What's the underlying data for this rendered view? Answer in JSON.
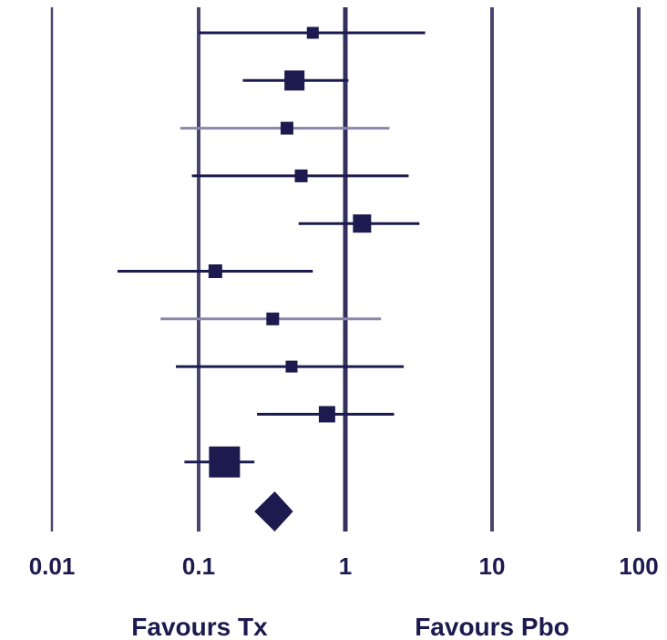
{
  "chart_data": {
    "type": "forest",
    "x_scale": "log",
    "xlim": [
      0.01,
      100
    ],
    "x_ticks": [
      0.01,
      0.1,
      1,
      10,
      100
    ],
    "x_tick_labels": [
      "0.01",
      "0.1",
      "1",
      "10",
      "100"
    ],
    "favours_left": "Favours Tx",
    "favours_right": "Favours Pbo",
    "studies": [
      {
        "estimate": 0.6,
        "ci_low": 0.1,
        "ci_high": 3.5,
        "weight": 1.0
      },
      {
        "estimate": 0.45,
        "ci_low": 0.2,
        "ci_high": 1.05,
        "weight": 2.7
      },
      {
        "estimate": 0.4,
        "ci_low": 0.075,
        "ci_high": 2.0,
        "weight": 1.2
      },
      {
        "estimate": 0.5,
        "ci_low": 0.09,
        "ci_high": 2.7,
        "weight": 1.1
      },
      {
        "estimate": 1.3,
        "ci_low": 0.48,
        "ci_high": 3.2,
        "weight": 2.4
      },
      {
        "estimate": 0.13,
        "ci_low": 0.028,
        "ci_high": 0.6,
        "weight": 1.3
      },
      {
        "estimate": 0.32,
        "ci_low": 0.055,
        "ci_high": 1.75,
        "weight": 1.1
      },
      {
        "estimate": 0.43,
        "ci_low": 0.07,
        "ci_high": 2.5,
        "weight": 1.0
      },
      {
        "estimate": 0.75,
        "ci_low": 0.25,
        "ci_high": 2.15,
        "weight": 1.8
      },
      {
        "estimate": 0.15,
        "ci_low": 0.08,
        "ci_high": 0.24,
        "weight": 6.5
      }
    ],
    "pooled": {
      "estimate": 0.33,
      "ci_low": 0.24,
      "ci_high": 0.44
    },
    "colors": {
      "marker": "#1c1a4e",
      "grid": "#4a4671",
      "reference": "#33305e",
      "text": "#1c1a4e",
      "ci_light": "#8a87a8"
    }
  }
}
